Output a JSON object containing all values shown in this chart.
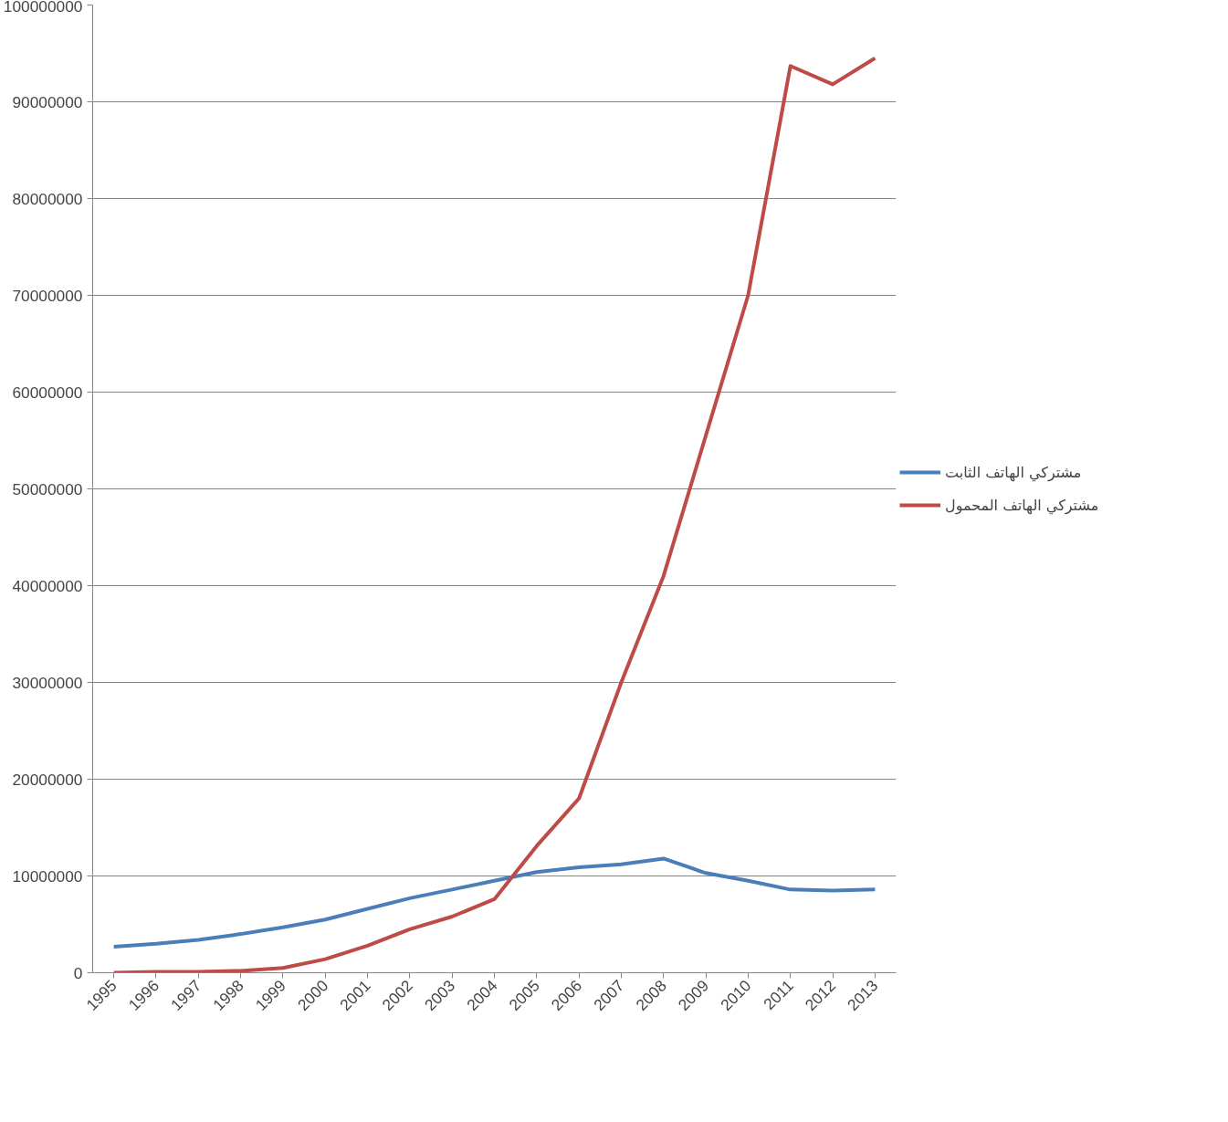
{
  "chart_data": {
    "type": "line",
    "categories": [
      "1995",
      "1996",
      "1997",
      "1998",
      "1999",
      "2000",
      "2001",
      "2002",
      "2003",
      "2004",
      "2005",
      "2006",
      "2007",
      "2008",
      "2009",
      "2010",
      "2011",
      "2012",
      "2013"
    ],
    "series": [
      {
        "name": "مشتركي الهاتف الثابت",
        "color": "#4a7ebb",
        "values": [
          2700000,
          3000000,
          3400000,
          4000000,
          4700000,
          5500000,
          6600000,
          7700000,
          8600000,
          9500000,
          10400000,
          10900000,
          11200000,
          11800000,
          10300000,
          9500000,
          8600000,
          8500000,
          8600000
        ]
      },
      {
        "name": "مشتركي الهاتف المحمول",
        "color": "#be4b48",
        "values": [
          0,
          100000,
          100000,
          200000,
          500000,
          1400000,
          2800000,
          4500000,
          5800000,
          7600000,
          13100000,
          18000000,
          30000000,
          41000000,
          55500000,
          70000000,
          93700000,
          91800000,
          94500000
        ]
      }
    ],
    "ylim": [
      0,
      100000000
    ],
    "yticks": [
      0,
      10000000,
      20000000,
      30000000,
      40000000,
      50000000,
      60000000,
      70000000,
      80000000,
      90000000,
      100000000
    ],
    "grid": "y",
    "legend": "right",
    "marker": "none",
    "line_style": "solid"
  }
}
